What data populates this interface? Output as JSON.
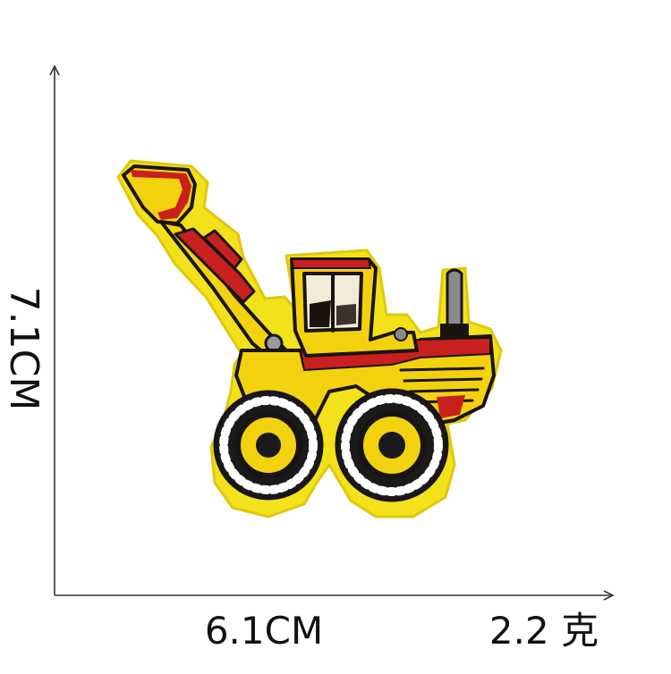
{
  "dimensions": {
    "height_label": "7.1CM",
    "width_label": "6.1CM",
    "weight_label": "2.2 克"
  },
  "patch": {
    "subject": "embroidered loader tractor patch",
    "colors": {
      "border_yellow": "#f3e11b",
      "body_yellow": "#f2d20f",
      "red": "#c8201e",
      "outline": "#1a1411",
      "cab_window": "#f3ead8",
      "exhaust": "#8a8a8a",
      "tire": "#1a1a1a"
    }
  }
}
